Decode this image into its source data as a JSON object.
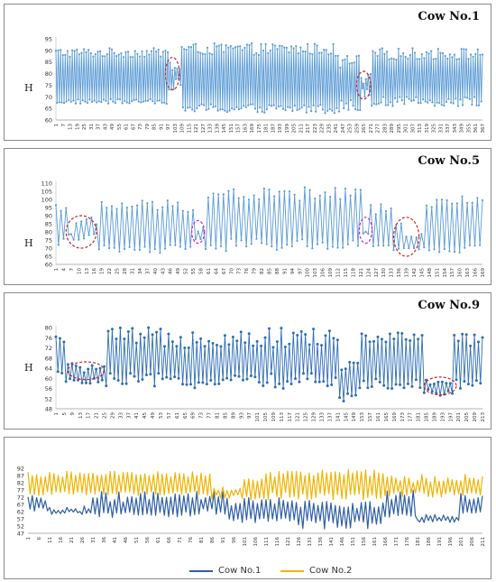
{
  "chart_data": [
    {
      "type": "line",
      "title": "Cow No.1",
      "ylabel": "H",
      "ylim": [
        60,
        95
      ],
      "yticks": [
        60,
        65,
        70,
        75,
        80,
        85,
        90,
        95
      ],
      "x_start": 1,
      "x_end": 367,
      "x_step": 6,
      "series_color": "#5b9bd5",
      "markers": true,
      "segments": [
        {
          "from": 1,
          "to": 97,
          "low": [
            67,
            69
          ],
          "high": [
            87,
            91
          ]
        },
        {
          "from": 97,
          "to": 108,
          "low": [
            73,
            78
          ],
          "high": [
            80,
            86
          ]
        },
        {
          "from": 108,
          "to": 240,
          "low": [
            63,
            67
          ],
          "high": [
            88,
            93
          ]
        },
        {
          "from": 240,
          "to": 262,
          "low": [
            63,
            69
          ],
          "high": [
            82,
            88
          ]
        },
        {
          "from": 262,
          "to": 271,
          "low": [
            70,
            75
          ],
          "high": [
            74,
            80
          ]
        },
        {
          "from": 271,
          "to": 367,
          "low": [
            66,
            70
          ],
          "high": [
            86,
            91
          ]
        }
      ],
      "annotations": [
        {
          "x": 101,
          "y": 80,
          "rx": 6,
          "ry": 7,
          "color": "#cc2222"
        },
        {
          "x": 265,
          "y": 75,
          "rx": 6,
          "ry": 6,
          "color": "#cc2222"
        }
      ]
    },
    {
      "type": "line",
      "title": "Cow No.5",
      "ylabel": "H",
      "ylim": [
        60,
        110
      ],
      "yticks": [
        60,
        65,
        70,
        75,
        80,
        85,
        90,
        95,
        100,
        105,
        110
      ],
      "x_start": 1,
      "x_end": 169,
      "x_step": 3,
      "series_color": "#5b9bd5",
      "markers": true,
      "segments": [
        {
          "from": 1,
          "to": 5,
          "low": [
            72,
            76
          ],
          "high": [
            92,
            98
          ]
        },
        {
          "from": 5,
          "to": 17,
          "low": [
            75,
            79
          ],
          "high": [
            78,
            90
          ]
        },
        {
          "from": 17,
          "to": 55,
          "low": [
            66,
            72
          ],
          "high": [
            92,
            100
          ]
        },
        {
          "from": 55,
          "to": 59,
          "low": [
            72,
            76
          ],
          "high": [
            80,
            84
          ]
        },
        {
          "from": 59,
          "to": 121,
          "low": [
            68,
            76
          ],
          "high": [
            98,
            108
          ]
        },
        {
          "from": 121,
          "to": 124,
          "low": [
            78,
            80
          ],
          "high": [
            80,
            84
          ]
        },
        {
          "from": 124,
          "to": 134,
          "low": [
            68,
            72
          ],
          "high": [
            90,
            97
          ]
        },
        {
          "from": 134,
          "to": 146,
          "low": [
            68,
            72
          ],
          "high": [
            76,
            86
          ]
        },
        {
          "from": 146,
          "to": 169,
          "low": [
            66,
            72
          ],
          "high": [
            94,
            102
          ]
        }
      ],
      "annotations": [
        {
          "x": 11,
          "y": 80,
          "rx": 6,
          "ry": 10,
          "color": "#cc2222"
        },
        {
          "x": 57,
          "y": 80,
          "rx": 2.5,
          "ry": 7,
          "color": "#cc22cc"
        },
        {
          "x": 123,
          "y": 81,
          "rx": 2.5,
          "ry": 8,
          "color": "#cc22cc"
        },
        {
          "x": 139,
          "y": 77,
          "rx": 5,
          "ry": 12,
          "color": "#cc2222"
        }
      ]
    },
    {
      "type": "line",
      "title": "Cow No.9",
      "ylabel": "H",
      "ylim": [
        48,
        80
      ],
      "yticks": [
        48,
        52,
        56,
        60,
        64,
        68,
        72,
        76,
        80
      ],
      "x_start": 1,
      "x_end": 213,
      "x_step": 4,
      "series_color": "#2f6db5",
      "markers": true,
      "segments": [
        {
          "from": 1,
          "to": 5,
          "low": [
            61,
            63
          ],
          "high": [
            74,
            77
          ]
        },
        {
          "from": 5,
          "to": 25,
          "low": [
            58,
            60
          ],
          "high": [
            62,
            66
          ]
        },
        {
          "from": 25,
          "to": 141,
          "low": [
            56,
            62
          ],
          "high": [
            72,
            80
          ]
        },
        {
          "from": 141,
          "to": 151,
          "low": [
            50,
            54
          ],
          "high": [
            62,
            68
          ]
        },
        {
          "from": 151,
          "to": 183,
          "low": [
            56,
            60
          ],
          "high": [
            74,
            78
          ]
        },
        {
          "from": 183,
          "to": 198,
          "low": [
            53,
            56
          ],
          "high": [
            57,
            60
          ]
        },
        {
          "from": 198,
          "to": 213,
          "low": [
            56,
            60
          ],
          "high": [
            70,
            78
          ]
        }
      ],
      "annotations": [
        {
          "x": 16,
          "y": 63,
          "rx": 9,
          "ry": 3.5,
          "color": "#cc2222"
        },
        {
          "x": 192,
          "y": 57,
          "rx": 8,
          "ry": 3.5,
          "color": "#cc2222"
        }
      ]
    },
    {
      "type": "line",
      "title": "",
      "ylabel": "",
      "ylim": [
        47,
        92
      ],
      "yticks": [
        47,
        52,
        57,
        62,
        67,
        72,
        77,
        82,
        87,
        92
      ],
      "x_start": 1,
      "x_end": 211,
      "x_step": 5,
      "markers": false,
      "legend_position": "bottom",
      "series": [
        {
          "name": "Cow No.1",
          "color": "#2e5fa3",
          "segments": [
            {
              "from": 1,
              "to": 10,
              "low": [
                62,
                65
              ],
              "high": [
                68,
                73
              ]
            },
            {
              "from": 10,
              "to": 30,
              "low": [
                60,
                62
              ],
              "high": [
                62,
                66
              ]
            },
            {
              "from": 30,
              "to": 80,
              "low": [
                58,
                62
              ],
              "high": [
                68,
                76
              ]
            },
            {
              "from": 80,
              "to": 92,
              "low": [
                60,
                64
              ],
              "high": [
                70,
                76
              ]
            },
            {
              "from": 92,
              "to": 125,
              "low": [
                54,
                58
              ],
              "high": [
                66,
                72
              ]
            },
            {
              "from": 125,
              "to": 165,
              "low": [
                50,
                56
              ],
              "high": [
                64,
                70
              ]
            },
            {
              "from": 165,
              "to": 180,
              "low": [
                58,
                62
              ],
              "high": [
                70,
                77
              ]
            },
            {
              "from": 180,
              "to": 200,
              "low": [
                54,
                56
              ],
              "high": [
                56,
                60
              ]
            },
            {
              "from": 200,
              "to": 211,
              "low": [
                60,
                64
              ],
              "high": [
                70,
                76
              ]
            }
          ]
        },
        {
          "name": "Cow No.2",
          "color": "#f0b400",
          "segments": [
            {
              "from": 1,
              "to": 85,
              "low": [
                73,
                76
              ],
              "high": [
                86,
                90
              ]
            },
            {
              "from": 85,
              "to": 100,
              "low": [
                70,
                74
              ],
              "high": [
                76,
                80
              ]
            },
            {
              "from": 100,
              "to": 110,
              "low": [
                70,
                74
              ],
              "high": [
                82,
                86
              ]
            },
            {
              "from": 110,
              "to": 165,
              "low": [
                70,
                76
              ],
              "high": [
                86,
                91
              ]
            },
            {
              "from": 165,
              "to": 211,
              "low": [
                72,
                76
              ],
              "high": [
                82,
                88
              ]
            }
          ]
        }
      ]
    }
  ]
}
